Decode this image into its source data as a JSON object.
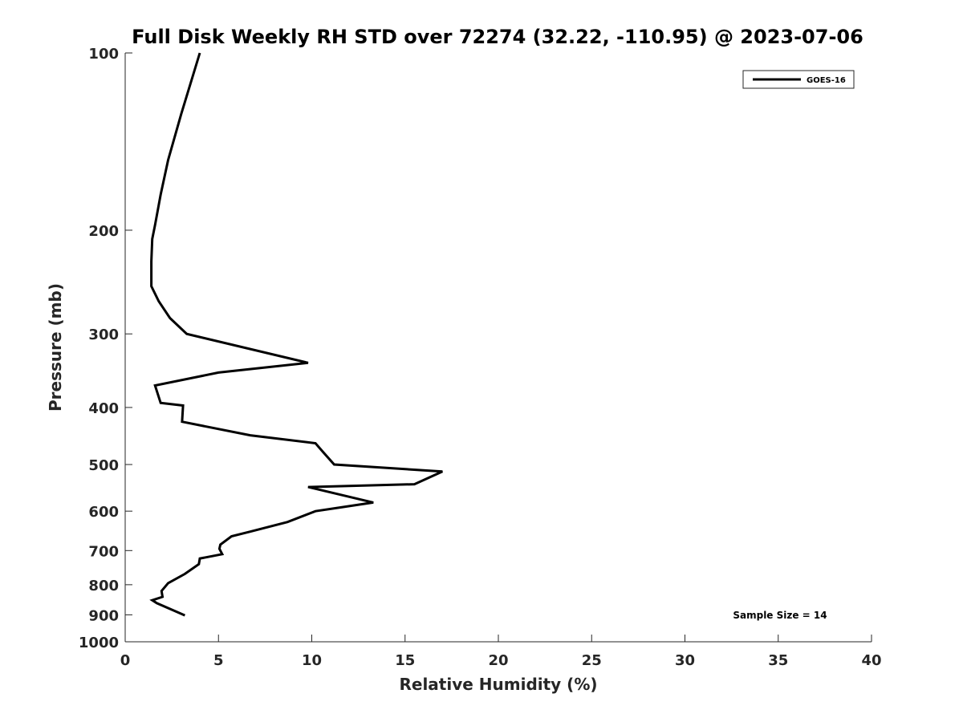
{
  "chart_data": {
    "type": "line",
    "title": "Full Disk Weekly RH STD over 72274 (32.22, -110.95) @ 2023-07-06",
    "xlabel": "Relative Humidity (%)",
    "ylabel": "Pressure (mb)",
    "xlim": [
      0,
      40
    ],
    "ylim": [
      100,
      1000
    ],
    "y_scale": "log",
    "y_reversed": true,
    "grid": false,
    "legend_position": "top-right",
    "x_ticks": [
      0,
      5,
      10,
      15,
      20,
      25,
      30,
      35,
      40
    ],
    "x_tick_labels": [
      "0",
      "5",
      "10",
      "15",
      "20",
      "25",
      "30",
      "35",
      "40"
    ],
    "y_ticks": [
      100,
      200,
      300,
      400,
      500,
      600,
      700,
      800,
      900,
      1000
    ],
    "y_tick_labels": [
      "100",
      "200",
      "300",
      "400",
      "500",
      "600",
      "700",
      "800",
      "900",
      "1000"
    ],
    "series": [
      {
        "name": "GOES-16",
        "color": "#000000",
        "x": [
          4.0,
          3.0,
          2.3,
          1.9,
          1.6,
          1.45,
          1.4,
          1.4,
          1.8,
          2.4,
          3.3,
          9.8,
          5.0,
          1.6,
          1.9,
          3.1,
          3.05,
          6.7,
          10.2,
          10.6,
          11.2,
          17.0,
          15.5,
          9.8,
          13.3,
          10.2,
          8.7,
          6.7,
          5.7,
          5.1,
          5.05,
          5.2,
          4.0,
          3.95,
          3.2,
          2.3,
          1.95,
          2.0,
          1.45,
          1.7,
          3.2
        ],
        "y": [
          100,
          127,
          152,
          174,
          196,
          207,
          226,
          249,
          264,
          282,
          300,
          336,
          349,
          367,
          393,
          397,
          423,
          446,
          460,
          476,
          500,
          514,
          540,
          546,
          580,
          600,
          626,
          650,
          662,
          684,
          695,
          710,
          722,
          738,
          767,
          795,
          820,
          839,
          850,
          860,
          902
        ]
      }
    ],
    "annotations": [
      "Sample Size = 14"
    ]
  }
}
